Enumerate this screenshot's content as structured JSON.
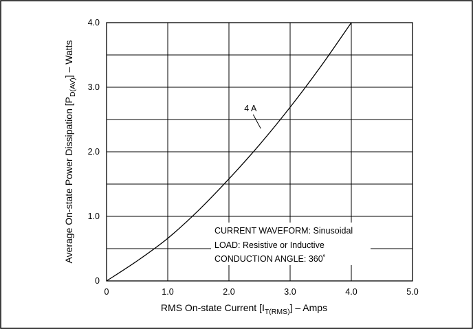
{
  "chart_data": {
    "type": "line",
    "title": "",
    "xlabel": {
      "main": "RMS On-state Current [I",
      "sub": "T(RMS)",
      "tail": "] – Amps"
    },
    "ylabel": {
      "main": "Average On-state Power Dissipation [P",
      "sub": "D(AV)",
      "tail": "] – Watts"
    },
    "xlim": [
      0,
      5.0
    ],
    "ylim": [
      0,
      4.0
    ],
    "x_ticks": [
      {
        "value": 0,
        "label": "0"
      },
      {
        "value": 1.0,
        "label": "1.0"
      },
      {
        "value": 2.0,
        "label": "2.0"
      },
      {
        "value": 3.0,
        "label": "3.0"
      },
      {
        "value": 4.0,
        "label": "4.0"
      },
      {
        "value": 5.0,
        "label": "5.0"
      }
    ],
    "y_ticks": [
      {
        "value": 0,
        "label": "0"
      },
      {
        "value": 1.0,
        "label": "1.0"
      },
      {
        "value": 2.0,
        "label": "2.0"
      },
      {
        "value": 3.0,
        "label": "3.0"
      },
      {
        "value": 4.0,
        "label": "4.0"
      }
    ],
    "x_grid": [
      1.0,
      2.0,
      3.0,
      4.0
    ],
    "y_grid": [
      0.5,
      1.0,
      1.5,
      2.0,
      2.5,
      3.0,
      3.5
    ],
    "grid": true,
    "series": [
      {
        "name": "4 A",
        "x": [
          0,
          0.5,
          1.0,
          1.5,
          2.0,
          2.5,
          3.0,
          3.5,
          4.0
        ],
        "y": [
          0,
          0.31,
          0.66,
          1.09,
          1.58,
          2.11,
          2.69,
          3.32,
          4.0
        ]
      }
    ],
    "series_label": {
      "text": "4 A",
      "x": 2.25,
      "y": 2.63,
      "pointer_to": [
        2.52,
        2.36
      ]
    },
    "annotation_lines": [
      "CURRENT WAVEFORM: Sinusoidal",
      "LOAD: Resistive or Inductive",
      "CONDUCTION ANGLE: 360˚"
    ]
  }
}
